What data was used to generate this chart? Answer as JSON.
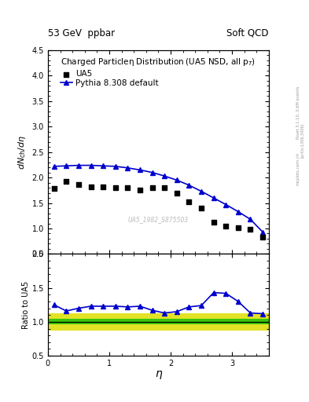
{
  "title_left": "53 GeV  ppbar",
  "title_right": "Soft QCD",
  "plot_title": "Charged Particleη Distribution (UA5 NSD, all p_{T})",
  "ylabel_main": "dN_{ch}/dη",
  "ylabel_ratio": "Ratio to UA5",
  "xlabel": "η",
  "watermark": "UA5_1982_S875503",
  "right_label": "Rivet 3.1.10, 3.6M events",
  "right_label2": "[arXiv:1306.3436]",
  "right_label3": "mcplots.cern.ch",
  "ylim_main": [
    0.5,
    4.5
  ],
  "ylim_ratio": [
    0.5,
    2.0
  ],
  "xlim": [
    0.0,
    3.6
  ],
  "ua5_eta": [
    0.1,
    0.3,
    0.5,
    0.7,
    0.9,
    1.1,
    1.3,
    1.5,
    1.7,
    1.9,
    2.1,
    2.3,
    2.5,
    2.7,
    2.9,
    3.1,
    3.3,
    3.5
  ],
  "ua5_values": [
    1.78,
    1.92,
    1.87,
    1.82,
    1.82,
    1.8,
    1.8,
    1.75,
    1.8,
    1.8,
    1.7,
    1.52,
    1.4,
    1.12,
    1.04,
    1.02,
    0.98,
    0.83
  ],
  "pythia_eta": [
    0.1,
    0.3,
    0.5,
    0.7,
    0.9,
    1.1,
    1.3,
    1.5,
    1.7,
    1.9,
    2.1,
    2.3,
    2.5,
    2.7,
    2.9,
    3.1,
    3.3,
    3.5
  ],
  "pythia_values": [
    2.22,
    2.23,
    2.24,
    2.24,
    2.23,
    2.22,
    2.19,
    2.15,
    2.1,
    2.03,
    1.95,
    1.85,
    1.73,
    1.6,
    1.47,
    1.33,
    1.18,
    0.93
  ],
  "ratio_values": [
    1.25,
    1.16,
    1.2,
    1.23,
    1.23,
    1.23,
    1.22,
    1.23,
    1.17,
    1.13,
    1.15,
    1.22,
    1.24,
    1.43,
    1.42,
    1.3,
    1.13,
    1.12
  ],
  "green_band_lo": 0.96,
  "green_band_hi": 1.04,
  "yellow_band_lo": 0.87,
  "yellow_band_hi": 1.13,
  "ua5_color": "#000000",
  "pythia_color": "#0000cc",
  "green_color": "#00bb00",
  "yellow_color": "#dddd00",
  "bg_color": "#ffffff"
}
